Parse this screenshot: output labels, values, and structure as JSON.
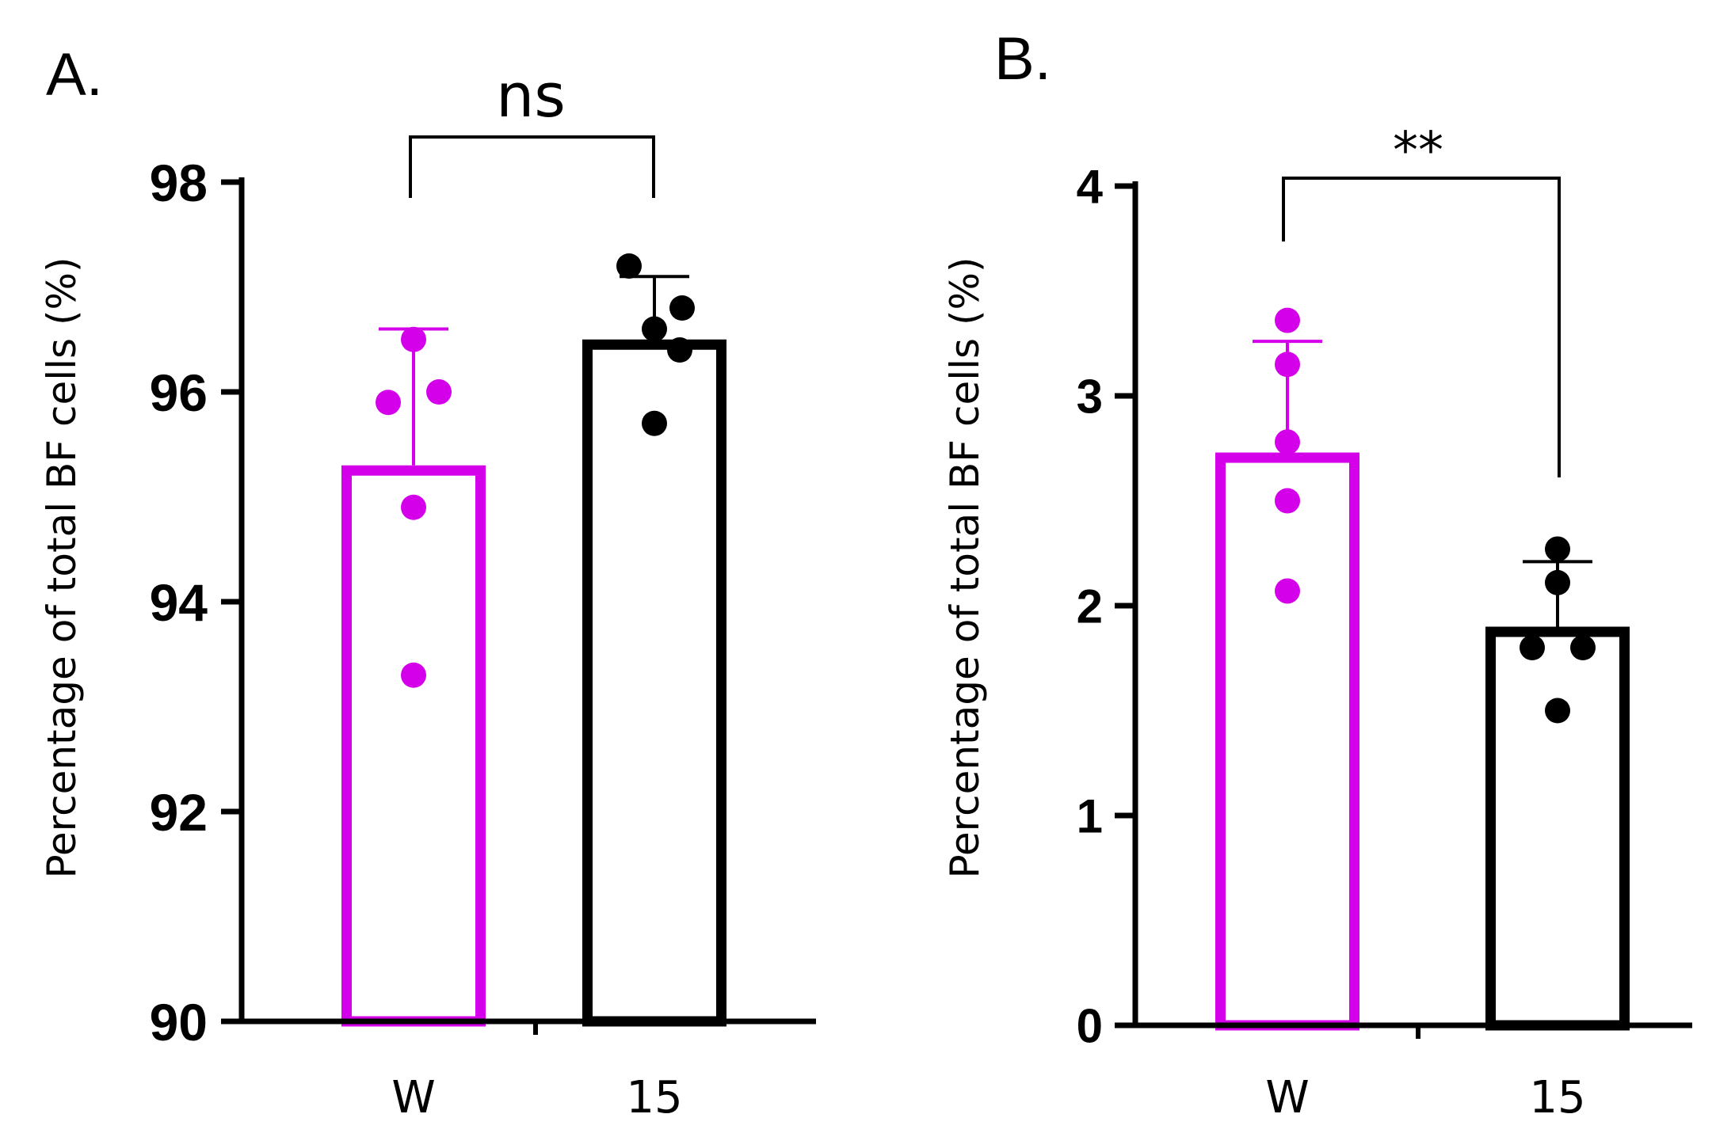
{
  "chart_data": [
    {
      "panel_label": "A.",
      "type": "bar",
      "categories": [
        "W",
        "15"
      ],
      "colors": [
        "#d500ea",
        "#000000"
      ],
      "means": [
        95.3,
        96.5
      ],
      "error_upper": [
        96.6,
        97.1
      ],
      "points": [
        [
          96.5,
          95.9,
          96.0,
          94.9,
          93.3
        ],
        [
          97.2,
          96.6,
          96.8,
          96.4,
          95.7
        ]
      ],
      "ylabel": "Percentage of total BF cells (%)",
      "ylim": [
        90,
        98
      ],
      "yticks": [
        90,
        92,
        94,
        96,
        98
      ],
      "significance": {
        "label": "ns",
        "between": [
          "W",
          "15"
        ]
      }
    },
    {
      "panel_label": "B.",
      "type": "bar",
      "categories": [
        "W",
        "15"
      ],
      "colors": [
        "#d500ea",
        "#000000"
      ],
      "means": [
        2.73,
        1.9
      ],
      "error_upper": [
        3.26,
        2.21
      ],
      "points": [
        [
          3.36,
          3.15,
          2.78,
          2.5,
          2.07
        ],
        [
          2.27,
          2.11,
          1.8,
          1.8,
          1.5
        ]
      ],
      "ylabel": "Percentage of total BF cells (%)",
      "ylim": [
        0,
        4
      ],
      "yticks": [
        0,
        1,
        2,
        3,
        4
      ],
      "significance": {
        "label": "**",
        "between": [
          "W",
          "15"
        ]
      }
    }
  ]
}
